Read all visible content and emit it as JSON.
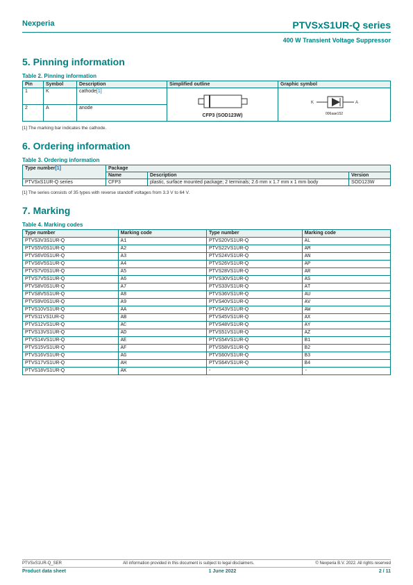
{
  "header": {
    "brand": "Nexperia",
    "product": "PTVSxS1UR-Q series",
    "subtitle": "400 W Transient Voltage Suppressor"
  },
  "sections": {
    "s5": "5.  Pinning information",
    "s6": "6.  Ordering information",
    "s7": "7.  Marking"
  },
  "tables": {
    "t2": {
      "title": "Table 2. Pinning information",
      "headers": [
        "Pin",
        "Symbol",
        "Description",
        "Simplified outline",
        "Graphic symbol"
      ],
      "rows": [
        {
          "pin": "1",
          "symbol": "K",
          "desc": "cathode",
          "ref": "[1]"
        },
        {
          "pin": "2",
          "symbol": "A",
          "desc": "anode"
        }
      ],
      "outline_label": "CFP3 (SOD123W)",
      "graphic_caption": "006aae152",
      "footnote": "[1]   The marking bar indicates the cathode."
    },
    "t3": {
      "title": "Table 3. Ordering information",
      "h_type": "Type number",
      "h_ref": "[1]",
      "h_pkg": "Package",
      "h_name": "Name",
      "h_desc": "Description",
      "h_ver": "Version",
      "row": {
        "type": "PTVSxS1UR-Q series",
        "name": "CFP3",
        "desc": "plastic, surface mounted package; 2 terminals; 2.6 mm x 1.7 mm x 1 mm body",
        "ver": "SOD123W"
      },
      "footnote": "[1]   The series consists of 35 types with reverse standoff voltages from 3.3 V to 64 V."
    },
    "t4": {
      "title": "Table 4. Marking codes",
      "headers": [
        "Type number",
        "Marking code",
        "Type number",
        "Marking code"
      ],
      "rows": [
        [
          "PTVS3V3S1UR-Q",
          "A1",
          "PTVS20VS1UR-Q",
          "AL"
        ],
        [
          "PTVS5V0S1UR-Q",
          "A2",
          "PTVS22VS1UR-Q",
          "AM"
        ],
        [
          "PTVS6V0S1UR-Q",
          "A3",
          "PTVS24VS1UR-Q",
          "AN"
        ],
        [
          "PTVS6V5S1UR-Q",
          "A4",
          "PTVS26VS1UR-Q",
          "AP"
        ],
        [
          "PTVS7V0S1UR-Q",
          "A5",
          "PTVS28VS1UR-Q",
          "AR"
        ],
        [
          "PTVS7V5S1UR-Q",
          "A6",
          "PTVS30VS1UR-Q",
          "AS"
        ],
        [
          "PTVS8V0S1UR-Q",
          "A7",
          "PTVS33VS1UR-Q",
          "AT"
        ],
        [
          "PTVS8V5S1UR-Q",
          "A8",
          "PTVS36VS1UR-Q",
          "AU"
        ],
        [
          "PTVS9V0S1UR-Q",
          "A9",
          "PTVS40VS1UR-Q",
          "AV"
        ],
        [
          "PTVS10VS1UR-Q",
          "AA",
          "PTVS43VS1UR-Q",
          "AW"
        ],
        [
          "PTVS11VS1UR-Q",
          "AB",
          "PTVS45VS1UR-Q",
          "AX"
        ],
        [
          "PTVS12VS1UR-Q",
          "AC",
          "PTVS48VS1UR-Q",
          "AY"
        ],
        [
          "PTVS13VS1UR-Q",
          "AD",
          "PTVS51VS1UR-Q",
          "AZ"
        ],
        [
          "PTVS14VS1UR-Q",
          "AE",
          "PTVS54VS1UR-Q",
          "B1"
        ],
        [
          "PTVS15VS1UR-Q",
          "AF",
          "PTVS58VS1UR-Q",
          "B2"
        ],
        [
          "PTVS16VS1UR-Q",
          "AG",
          "PTVS60VS1UR-Q",
          "B3"
        ],
        [
          "PTVS17VS1UR-Q",
          "AH",
          "PTVS64VS1UR-Q",
          "B4"
        ],
        [
          "PTVS18VS1UR-Q",
          "AK",
          "-",
          "-"
        ]
      ]
    }
  },
  "footer": {
    "doc_id": "PTVSxS1UR-Q_SER",
    "disclaimer": "All information provided in this document is subject to legal disclaimers.",
    "copyright": "© Nexperia B.V. 2022. All rights reserved",
    "doc_type": "Product data sheet",
    "date": "1 June 2022",
    "page": "2 / 11"
  },
  "colors": {
    "teal": "#008080",
    "header_bg": "#e8f0f0"
  }
}
